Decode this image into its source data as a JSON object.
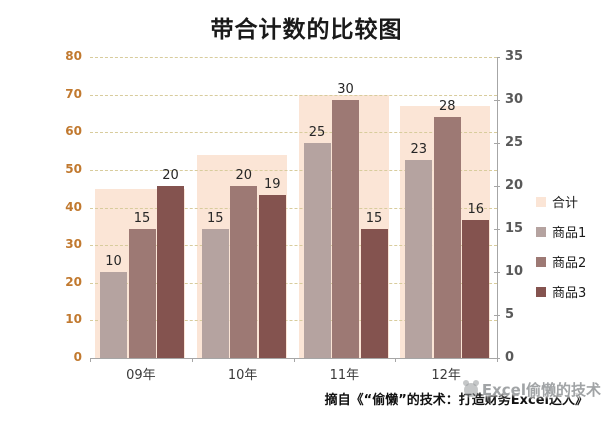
{
  "title": "带合计数的比较图",
  "chart_data": {
    "type": "bar",
    "title": "带合计数的比较图",
    "categories": [
      "09年",
      "10年",
      "11年",
      "12年"
    ],
    "series": [
      {
        "name": "合计",
        "axis": "left",
        "color": "#fbe5d6",
        "values": [
          45,
          54,
          70,
          67
        ],
        "style": "background-total",
        "data_labels": false
      },
      {
        "name": "商品1",
        "axis": "right",
        "color": "#b5a3a0",
        "values": [
          10,
          15,
          25,
          23
        ],
        "data_labels": true
      },
      {
        "name": "商品2",
        "axis": "right",
        "color": "#9d7974",
        "values": [
          15,
          20,
          30,
          28
        ],
        "data_labels": true
      },
      {
        "name": "商品3",
        "axis": "right",
        "color": "#84534f",
        "values": [
          20,
          19,
          15,
          16
        ],
        "data_labels": true
      }
    ],
    "axes": {
      "left": {
        "min": 0,
        "max": 80,
        "step": 10,
        "ticks": [
          0,
          10,
          20,
          30,
          40,
          50,
          60,
          70,
          80
        ],
        "label_color": "#c1792f"
      },
      "right": {
        "min": 0,
        "max": 35,
        "step": 5,
        "ticks": [
          0,
          5,
          10,
          15,
          20,
          25,
          30,
          35
        ],
        "label_color": "#595959"
      }
    },
    "grid": {
      "show": true,
      "style": "dashed",
      "color": "#d8cc9c"
    },
    "legend": {
      "position": "right",
      "items": [
        "合计",
        "商品1",
        "商品2",
        "商品3"
      ]
    }
  },
  "footer": {
    "source_text": "摘自《“偷懒”的技术：打造财务Excel达人》"
  },
  "watermark": {
    "text": "Excel偷懒的技术",
    "logo": "panda-logo-icon"
  }
}
